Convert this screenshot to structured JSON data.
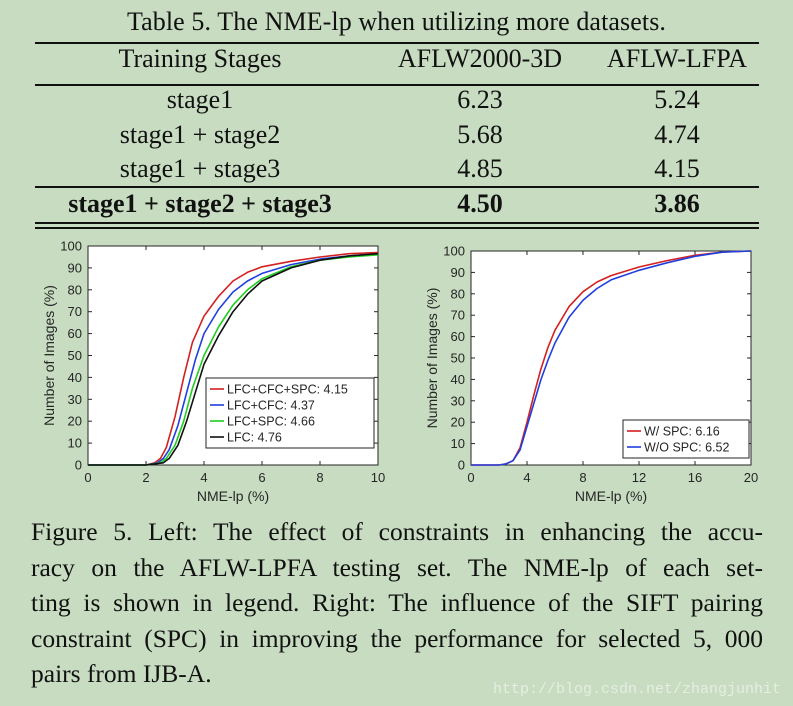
{
  "table": {
    "caption": "Table 5. The NME-lp when utilizing more datasets.",
    "headers": [
      "Training Stages",
      "AFLW2000-3D",
      "AFLW-LFPA"
    ],
    "rows": [
      [
        "stage1",
        "6.23",
        "5.24"
      ],
      [
        "stage1 + stage2",
        "5.68",
        "4.74"
      ],
      [
        "stage1 + stage3",
        "4.85",
        "4.15"
      ],
      [
        "stage1 + stage2 + stage3",
        "4.50",
        "3.86"
      ]
    ]
  },
  "chart_data": [
    {
      "type": "line",
      "xlabel": "NME-lp (%)",
      "ylabel": "Number of Images (%)",
      "xlim": [
        0,
        10
      ],
      "ylim": [
        0,
        100
      ],
      "xticks": [
        0,
        2,
        4,
        6,
        8,
        10
      ],
      "yticks": [
        0,
        10,
        20,
        30,
        40,
        50,
        60,
        70,
        80,
        90,
        100
      ],
      "grid": false,
      "legend_position": "bottom-right",
      "series": [
        {
          "name": "LFC+CFC+SPC: 4.15",
          "color": "#d42020",
          "x": [
            0,
            2,
            2.3,
            2.5,
            2.7,
            3,
            3.3,
            3.6,
            4,
            4.5,
            5,
            5.5,
            6,
            7,
            8,
            9,
            10
          ],
          "y": [
            0,
            0,
            1,
            3,
            8,
            22,
            40,
            56,
            68,
            77,
            84,
            88,
            90.5,
            93,
            95,
            96.5,
            97
          ]
        },
        {
          "name": "LFC+CFC: 4.37",
          "color": "#1f3fe0",
          "x": [
            0,
            2,
            2.4,
            2.6,
            2.8,
            3.1,
            3.4,
            3.7,
            4,
            4.5,
            5,
            5.5,
            6,
            7,
            8,
            9,
            10
          ],
          "y": [
            0,
            0,
            1,
            3,
            7,
            18,
            33,
            48,
            60,
            71,
            79,
            84,
            87.5,
            91.5,
            94,
            95.5,
            96.5
          ]
        },
        {
          "name": "LFC+SPC: 4.66",
          "color": "#1fcf1f",
          "x": [
            0,
            2,
            2.5,
            2.7,
            3,
            3.3,
            3.6,
            4,
            4.5,
            5,
            5.5,
            6,
            7,
            8,
            9,
            10
          ],
          "y": [
            0,
            0,
            1,
            3,
            9,
            20,
            35,
            50,
            63,
            73,
            80,
            85,
            90.5,
            93.5,
            95,
            96
          ]
        },
        {
          "name": "LFC: 4.76",
          "color": "#111111",
          "x": [
            0,
            2,
            2.6,
            2.8,
            3.1,
            3.4,
            3.7,
            4,
            4.5,
            5,
            5.5,
            6,
            7,
            8,
            9,
            10
          ],
          "y": [
            0,
            0,
            1,
            3,
            9,
            20,
            33,
            46,
            59,
            70,
            78,
            84,
            90,
            93.5,
            95.5,
            96.5
          ]
        }
      ]
    },
    {
      "type": "line",
      "xlabel": "NME-lp (%)",
      "ylabel": "Number of Images (%)",
      "xlim": [
        0,
        20
      ],
      "ylim": [
        0,
        100
      ],
      "xticks": [
        0,
        4,
        8,
        12,
        16,
        20
      ],
      "yticks": [
        0,
        10,
        20,
        30,
        40,
        50,
        60,
        70,
        80,
        90,
        100
      ],
      "grid": false,
      "legend_position": "bottom-right",
      "series": [
        {
          "name": "W/ SPC: 6.16",
          "color": "#d42020",
          "x": [
            0,
            2,
            2.5,
            3,
            3.5,
            4,
            4.5,
            5,
            5.5,
            6,
            7,
            8,
            9,
            10,
            12,
            14,
            16,
            18,
            20
          ],
          "y": [
            0,
            0,
            0.5,
            2,
            8,
            20,
            33,
            45,
            55,
            63,
            74,
            81,
            85.5,
            88.5,
            92.5,
            95.5,
            98,
            99.5,
            100
          ]
        },
        {
          "name": "W/O SPC: 6.52",
          "color": "#1f3fe0",
          "x": [
            0,
            2,
            2.5,
            3,
            3.5,
            4,
            4.5,
            5,
            5.5,
            6,
            7,
            8,
            9,
            10,
            12,
            14,
            16,
            18,
            20
          ],
          "y": [
            0,
            0,
            0.5,
            2,
            7,
            18,
            29,
            40,
            49,
            57,
            69,
            77,
            82.5,
            86.5,
            91,
            94.5,
            97.5,
            99.5,
            100
          ]
        }
      ]
    }
  ],
  "figure_caption": {
    "lines": [
      "Figure 5. Left: The effect of constraints in enhancing the accu-",
      "racy on the AFLW-LPFA testing set. The NME-lp of each set-",
      "ting is shown in legend. Right: The influence of the SIFT pairing",
      "constraint (SPC) in improving the performance for selected 5, 000",
      "pairs from IJB-A."
    ]
  },
  "watermark": "http://blog.csdn.net/zhangjunhit"
}
